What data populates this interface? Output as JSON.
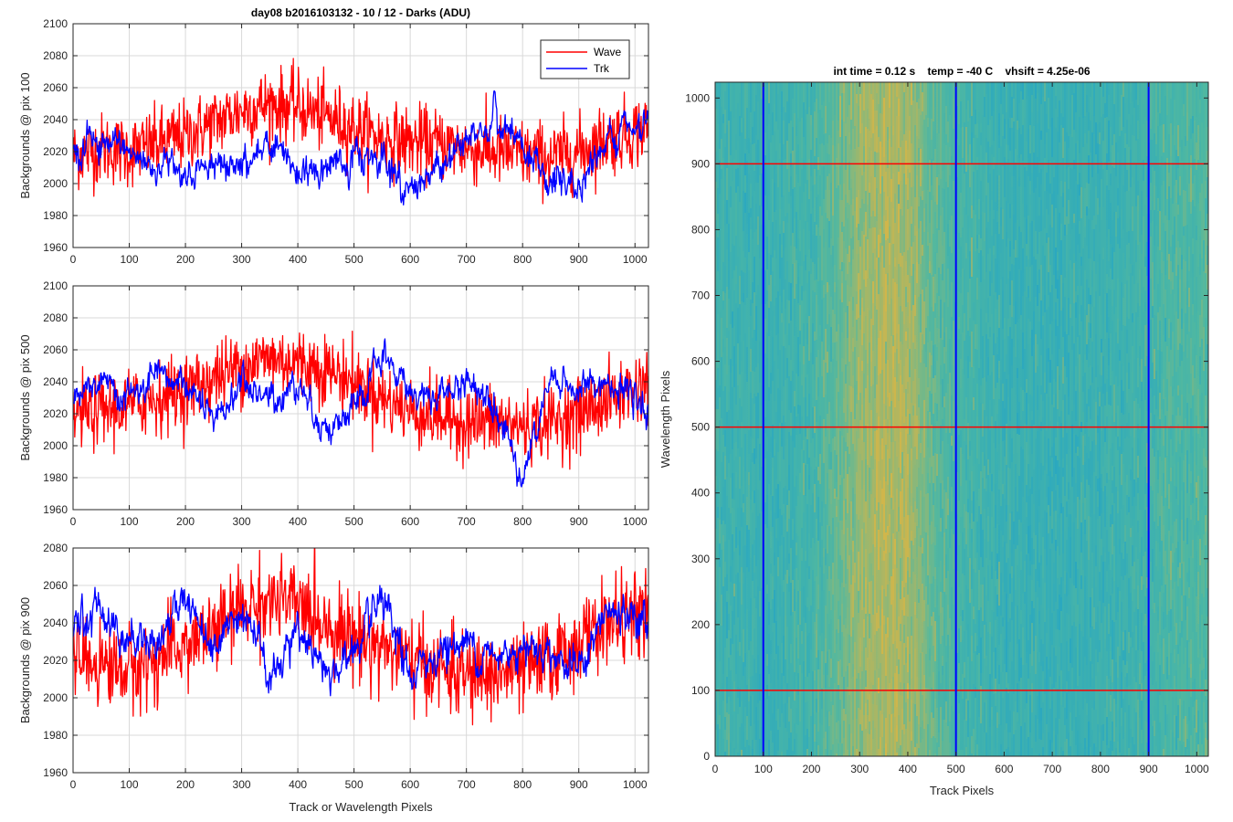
{
  "figure": {
    "left_title": "day08 b2016103132 - 10 / 12 - Darks (ADU)",
    "right_title": "int time = 0.12 s    temp = -40 C    vhsift = 4.25e-06"
  },
  "colors": {
    "wave": "#ff0000",
    "trk": "#0000ff",
    "grid": "#d9d9d9",
    "axis": "#262626",
    "heatmap_low": "#1fa3c9",
    "heatmap_mid": "#4fb8a2",
    "heatmap_high": "#e9b73a"
  },
  "chart_data": [
    {
      "type": "line",
      "title": "day08 b2016103132 - 10 / 12 - Darks (ADU)",
      "xlabel": "",
      "ylabel": "Backgrounds @ pix 100",
      "xlim": [
        0,
        1024
      ],
      "ylim": [
        1960,
        2100
      ],
      "xticks": [
        0,
        100,
        200,
        300,
        400,
        500,
        600,
        700,
        800,
        900,
        1000
      ],
      "yticks": [
        1960,
        1980,
        2000,
        2020,
        2040,
        2060,
        2080,
        2100
      ],
      "grid": true,
      "legend": "top-right",
      "series": [
        {
          "name": "Wave",
          "color": "#ff0000",
          "x": [
            0,
            50,
            100,
            150,
            200,
            250,
            300,
            350,
            400,
            450,
            500,
            550,
            600,
            650,
            700,
            750,
            800,
            850,
            900,
            950,
            1024
          ],
          "values": [
            2018,
            2022,
            2020,
            2025,
            2030,
            2038,
            2046,
            2050,
            2048,
            2042,
            2035,
            2028,
            2026,
            2025,
            2022,
            2020,
            2018,
            2016,
            2020,
            2028,
            2035
          ]
        },
        {
          "name": "Trk",
          "color": "#0000ff",
          "x": [
            0,
            50,
            100,
            150,
            200,
            250,
            300,
            350,
            400,
            450,
            500,
            550,
            600,
            650,
            700,
            750,
            800,
            850,
            900,
            950,
            1024
          ],
          "values": [
            2022,
            2026,
            2018,
            2012,
            2010,
            2008,
            2012,
            2022,
            2008,
            2010,
            2016,
            2015,
            1995,
            2010,
            2025,
            2040,
            2020,
            2000,
            2000,
            2030,
            2035
          ]
        }
      ]
    },
    {
      "type": "line",
      "title": "",
      "xlabel": "",
      "ylabel": "Backgrounds @ pix 500",
      "xlim": [
        0,
        1024
      ],
      "ylim": [
        1960,
        2100
      ],
      "xticks": [
        0,
        100,
        200,
        300,
        400,
        500,
        600,
        700,
        800,
        900,
        1000
      ],
      "yticks": [
        1960,
        1980,
        2000,
        2020,
        2040,
        2060,
        2080,
        2100
      ],
      "grid": true,
      "series": [
        {
          "color": "#ff0000",
          "x": [
            0,
            50,
            100,
            150,
            200,
            250,
            300,
            350,
            400,
            450,
            500,
            550,
            600,
            650,
            700,
            750,
            800,
            850,
            900,
            950,
            1024
          ],
          "values": [
            2020,
            2022,
            2025,
            2030,
            2035,
            2042,
            2050,
            2055,
            2052,
            2048,
            2040,
            2030,
            2022,
            2018,
            2015,
            2015,
            2012,
            2015,
            2020,
            2028,
            2040
          ]
        },
        {
          "color": "#0000ff",
          "x": [
            0,
            50,
            100,
            150,
            200,
            250,
            300,
            350,
            400,
            450,
            500,
            550,
            600,
            650,
            700,
            750,
            800,
            850,
            900,
            950,
            1024
          ],
          "values": [
            2028,
            2038,
            2030,
            2040,
            2040,
            2012,
            2040,
            2028,
            2040,
            2010,
            2020,
            2055,
            2035,
            2030,
            2040,
            2030,
            1980,
            2040,
            2035,
            2040,
            2020
          ]
        }
      ]
    },
    {
      "type": "line",
      "title": "",
      "xlabel": "Track or Wavelength Pixels",
      "ylabel": "Backgrounds @ pix 900",
      "xlim": [
        0,
        1024
      ],
      "ylim": [
        1960,
        2080
      ],
      "xticks": [
        0,
        100,
        200,
        300,
        400,
        500,
        600,
        700,
        800,
        900,
        1000
      ],
      "yticks": [
        1960,
        1980,
        2000,
        2020,
        2040,
        2060,
        2080
      ],
      "grid": true,
      "series": [
        {
          "color": "#ff0000",
          "x": [
            0,
            50,
            100,
            150,
            200,
            250,
            300,
            350,
            400,
            450,
            500,
            550,
            600,
            650,
            700,
            750,
            800,
            850,
            900,
            950,
            1024
          ],
          "values": [
            2022,
            2018,
            2015,
            2020,
            2028,
            2035,
            2048,
            2052,
            2050,
            2040,
            2032,
            2028,
            2020,
            2015,
            2012,
            2012,
            2015,
            2020,
            2030,
            2040,
            2045
          ]
        },
        {
          "color": "#0000ff",
          "x": [
            0,
            50,
            100,
            150,
            200,
            250,
            300,
            350,
            400,
            450,
            500,
            550,
            600,
            650,
            700,
            750,
            800,
            850,
            900,
            950,
            1024
          ],
          "values": [
            2035,
            2050,
            2030,
            2030,
            2055,
            2028,
            2050,
            2010,
            2040,
            2010,
            2025,
            2050,
            2010,
            2025,
            2030,
            2020,
            2030,
            2025,
            2015,
            2045,
            2040
          ]
        }
      ]
    },
    {
      "type": "heatmap",
      "title": "int time = 0.12 s    temp = -40 C    vhsift = 4.25e-06",
      "xlabel": "Track Pixels",
      "ylabel": "Wavelength Pixels",
      "xlim": [
        0,
        1024
      ],
      "ylim": [
        0,
        1024
      ],
      "xticks": [
        0,
        100,
        200,
        300,
        400,
        500,
        600,
        700,
        800,
        900,
        1000
      ],
      "yticks": [
        0,
        100,
        200,
        300,
        400,
        500,
        600,
        700,
        800,
        900,
        1000
      ],
      "column_profile": {
        "x": [
          0,
          100,
          200,
          250,
          300,
          350,
          400,
          450,
          500,
          600,
          700,
          800,
          900,
          950,
          1024
        ],
        "level": [
          0.35,
          0.3,
          0.4,
          0.55,
          0.72,
          0.82,
          0.78,
          0.55,
          0.42,
          0.3,
          0.28,
          0.3,
          0.38,
          0.45,
          0.5
        ]
      },
      "markers": {
        "vertical_blue_x": [
          100,
          500,
          900
        ],
        "horizontal_red_y": [
          100,
          500,
          900
        ]
      }
    }
  ]
}
